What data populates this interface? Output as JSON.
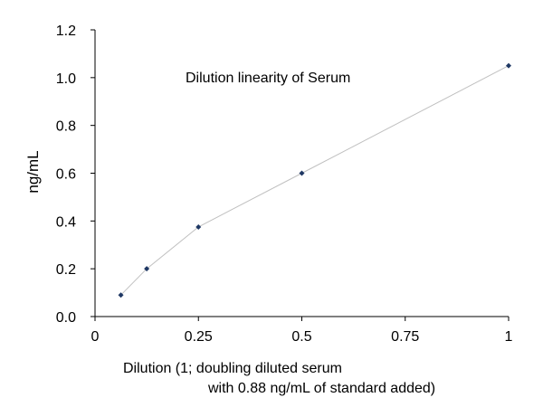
{
  "chart_data": {
    "type": "line",
    "title": "Dilution linearity of Serum",
    "ylabel": "ng/mL",
    "xlabel": [
      "Dilution (1; doubling diluted serum",
      "with 0.88 ng/mL of standard added)"
    ],
    "x_ticks": [
      {
        "value": 0,
        "label": "0"
      },
      {
        "value": 0.25,
        "label": "0.25"
      },
      {
        "value": 0.5,
        "label": "0.5"
      },
      {
        "value": 0.75,
        "label": "0.75"
      },
      {
        "value": 1,
        "label": "1"
      }
    ],
    "y_ticks": [
      {
        "value": 0,
        "label": "0.0"
      },
      {
        "value": 0.2,
        "label": "0.2"
      },
      {
        "value": 0.4,
        "label": "0.4"
      },
      {
        "value": 0.6,
        "label": "0.6"
      },
      {
        "value": 0.8,
        "label": "0.8"
      },
      {
        "value": 1.0,
        "label": "1.0"
      },
      {
        "value": 1.2,
        "label": "1.2"
      }
    ],
    "xlim": [
      0,
      1
    ],
    "ylim": [
      0,
      1.2
    ],
    "grid": false,
    "series": [
      {
        "x": [
          0.0625,
          0.125,
          0.25,
          0.5,
          1
        ],
        "y": [
          0.09,
          0.2,
          0.375,
          0.6,
          1.05
        ],
        "marker": "diamond",
        "marker_color": "#1f3864",
        "line_color": "#c0c0c0"
      }
    ]
  }
}
